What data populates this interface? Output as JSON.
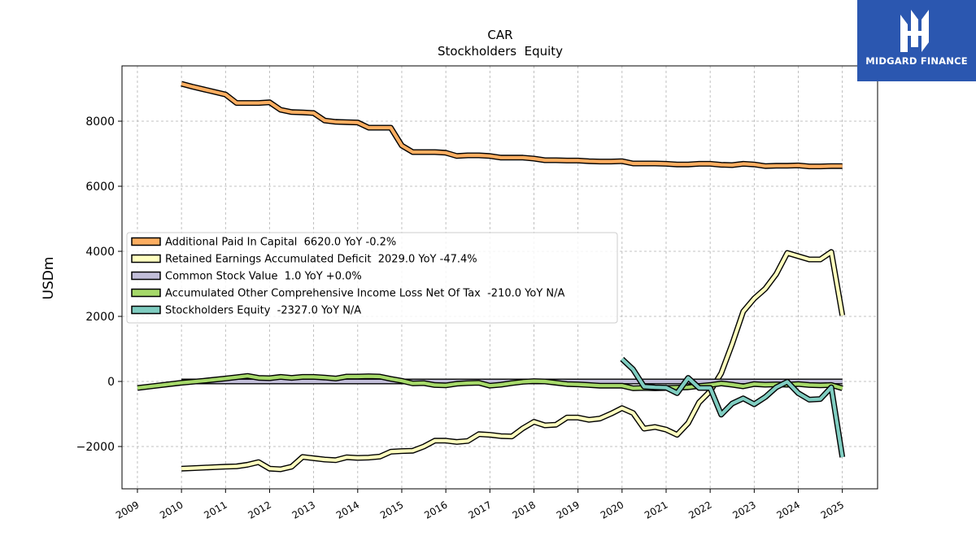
{
  "chart_data": {
    "type": "line",
    "title": "CAR",
    "subtitle": "Stockholders  Equity",
    "ylabel": "USDm",
    "xlabel": "",
    "xlim": [
      2008.65,
      2025.8
    ],
    "ylim": [
      -3300,
      9700
    ],
    "yticks": [
      -2000,
      0,
      2000,
      4000,
      6000,
      8000
    ],
    "ytick_labels": [
      "−2000",
      "0",
      "2000",
      "4000",
      "6000",
      "8000"
    ],
    "xticks": [
      2009,
      2010,
      2011,
      2012,
      2013,
      2014,
      2015,
      2016,
      2017,
      2018,
      2019,
      2020,
      2021,
      2022,
      2023,
      2024,
      2025
    ],
    "xtick_labels": [
      "2009",
      "2010",
      "2011",
      "2012",
      "2013",
      "2014",
      "2015",
      "2016",
      "2017",
      "2018",
      "2019",
      "2020",
      "2021",
      "2022",
      "2023",
      "2024",
      "2025"
    ],
    "grid": true,
    "legend_position": "center-left",
    "series": [
      {
        "name": "Additional Paid In Capital  6620.0 YoY -0.2%",
        "color": "#fdae61",
        "points": [
          [
            2010.0,
            9150
          ],
          [
            2010.25,
            9060
          ],
          [
            2010.5,
            8980
          ],
          [
            2010.75,
            8900
          ],
          [
            2011.0,
            8820
          ],
          [
            2011.25,
            8560
          ],
          [
            2011.5,
            8560
          ],
          [
            2011.75,
            8560
          ],
          [
            2012.0,
            8580
          ],
          [
            2012.25,
            8350
          ],
          [
            2012.5,
            8280
          ],
          [
            2012.75,
            8270
          ],
          [
            2013.0,
            8250
          ],
          [
            2013.25,
            8020
          ],
          [
            2013.5,
            7980
          ],
          [
            2013.75,
            7970
          ],
          [
            2014.0,
            7960
          ],
          [
            2014.25,
            7800
          ],
          [
            2014.5,
            7800
          ],
          [
            2014.75,
            7800
          ],
          [
            2015.0,
            7250
          ],
          [
            2015.25,
            7050
          ],
          [
            2015.5,
            7050
          ],
          [
            2015.75,
            7050
          ],
          [
            2016.0,
            7030
          ],
          [
            2016.25,
            6930
          ],
          [
            2016.5,
            6950
          ],
          [
            2016.75,
            6950
          ],
          [
            2017.0,
            6930
          ],
          [
            2017.25,
            6880
          ],
          [
            2017.5,
            6880
          ],
          [
            2017.75,
            6880
          ],
          [
            2018.0,
            6850
          ],
          [
            2018.25,
            6800
          ],
          [
            2018.5,
            6800
          ],
          [
            2018.75,
            6790
          ],
          [
            2019.0,
            6790
          ],
          [
            2019.25,
            6770
          ],
          [
            2019.5,
            6760
          ],
          [
            2019.75,
            6760
          ],
          [
            2020.0,
            6770
          ],
          [
            2020.25,
            6700
          ],
          [
            2020.5,
            6700
          ],
          [
            2020.75,
            6700
          ],
          [
            2021.0,
            6690
          ],
          [
            2021.25,
            6670
          ],
          [
            2021.5,
            6670
          ],
          [
            2021.75,
            6690
          ],
          [
            2022.0,
            6690
          ],
          [
            2022.25,
            6660
          ],
          [
            2022.5,
            6650
          ],
          [
            2022.75,
            6690
          ],
          [
            2023.0,
            6670
          ],
          [
            2023.25,
            6620
          ],
          [
            2023.5,
            6630
          ],
          [
            2023.75,
            6630
          ],
          [
            2024.0,
            6640
          ],
          [
            2024.25,
            6610
          ],
          [
            2024.5,
            6610
          ],
          [
            2024.75,
            6620
          ],
          [
            2025.0,
            6620
          ]
        ]
      },
      {
        "name": "Retained Earnings Accumulated Deficit  2029.0 YoY -47.4%",
        "color": "#ffffbf",
        "points": [
          [
            2010.0,
            -2680
          ],
          [
            2010.25,
            -2665
          ],
          [
            2010.5,
            -2650
          ],
          [
            2010.75,
            -2635
          ],
          [
            2011.0,
            -2620
          ],
          [
            2011.25,
            -2610
          ],
          [
            2011.5,
            -2560
          ],
          [
            2011.75,
            -2480
          ],
          [
            2012.0,
            -2680
          ],
          [
            2012.25,
            -2700
          ],
          [
            2012.5,
            -2620
          ],
          [
            2012.75,
            -2320
          ],
          [
            2013.0,
            -2360
          ],
          [
            2013.25,
            -2400
          ],
          [
            2013.5,
            -2420
          ],
          [
            2013.75,
            -2330
          ],
          [
            2014.0,
            -2350
          ],
          [
            2014.25,
            -2340
          ],
          [
            2014.5,
            -2310
          ],
          [
            2014.75,
            -2160
          ],
          [
            2015.0,
            -2140
          ],
          [
            2015.25,
            -2130
          ],
          [
            2015.5,
            -2000
          ],
          [
            2015.75,
            -1820
          ],
          [
            2016.0,
            -1820
          ],
          [
            2016.25,
            -1860
          ],
          [
            2016.5,
            -1830
          ],
          [
            2016.75,
            -1620
          ],
          [
            2017.0,
            -1640
          ],
          [
            2017.25,
            -1680
          ],
          [
            2017.5,
            -1690
          ],
          [
            2017.75,
            -1440
          ],
          [
            2018.0,
            -1240
          ],
          [
            2018.25,
            -1350
          ],
          [
            2018.5,
            -1330
          ],
          [
            2018.75,
            -1110
          ],
          [
            2019.0,
            -1110
          ],
          [
            2019.25,
            -1180
          ],
          [
            2019.5,
            -1140
          ],
          [
            2019.75,
            -990
          ],
          [
            2020.0,
            -820
          ],
          [
            2020.25,
            -970
          ],
          [
            2020.5,
            -1450
          ],
          [
            2020.75,
            -1400
          ],
          [
            2021.0,
            -1480
          ],
          [
            2021.25,
            -1640
          ],
          [
            2021.5,
            -1280
          ],
          [
            2021.75,
            -640
          ],
          [
            2022.0,
            -300
          ],
          [
            2022.25,
            250
          ],
          [
            2022.5,
            1150
          ],
          [
            2022.75,
            2150
          ],
          [
            2023.0,
            2550
          ],
          [
            2023.25,
            2850
          ],
          [
            2023.5,
            3300
          ],
          [
            2023.75,
            3950
          ],
          [
            2024.0,
            3850
          ],
          [
            2024.25,
            3750
          ],
          [
            2024.5,
            3750
          ],
          [
            2024.75,
            3980
          ],
          [
            2025.0,
            2029
          ]
        ]
      },
      {
        "name": "Common Stock Value  1.0 YoY +0.0%",
        "color": "#c2bed9",
        "points": [
          [
            2010.0,
            1
          ],
          [
            2025.0,
            1
          ]
        ]
      },
      {
        "name": "Accumulated Other Comprehensive Income Loss Net Of Tax  -210.0 YoY N/A",
        "color": "#a6d96a",
        "points": [
          [
            2009.0,
            -200
          ],
          [
            2009.5,
            -120
          ],
          [
            2010.0,
            -40
          ],
          [
            2010.5,
            20
          ],
          [
            2011.0,
            90
          ],
          [
            2011.25,
            130
          ],
          [
            2011.5,
            170
          ],
          [
            2011.75,
            110
          ],
          [
            2012.0,
            100
          ],
          [
            2012.25,
            140
          ],
          [
            2012.5,
            110
          ],
          [
            2012.75,
            140
          ],
          [
            2013.0,
            140
          ],
          [
            2013.25,
            120
          ],
          [
            2013.5,
            90
          ],
          [
            2013.75,
            150
          ],
          [
            2014.0,
            150
          ],
          [
            2014.25,
            160
          ],
          [
            2014.5,
            150
          ],
          [
            2014.75,
            80
          ],
          [
            2015.0,
            20
          ],
          [
            2015.25,
            -60
          ],
          [
            2015.5,
            -50
          ],
          [
            2015.75,
            -110
          ],
          [
            2016.0,
            -120
          ],
          [
            2016.25,
            -70
          ],
          [
            2016.5,
            -50
          ],
          [
            2016.75,
            -40
          ],
          [
            2017.0,
            -130
          ],
          [
            2017.25,
            -100
          ],
          [
            2017.5,
            -50
          ],
          [
            2017.75,
            -10
          ],
          [
            2018.0,
            10
          ],
          [
            2018.25,
            0
          ],
          [
            2018.5,
            -40
          ],
          [
            2018.75,
            -80
          ],
          [
            2019.0,
            -90
          ],
          [
            2019.25,
            -110
          ],
          [
            2019.5,
            -130
          ],
          [
            2019.75,
            -130
          ],
          [
            2020.0,
            -130
          ],
          [
            2020.25,
            -210
          ],
          [
            2020.5,
            -200
          ],
          [
            2020.75,
            -210
          ],
          [
            2021.0,
            -200
          ],
          [
            2021.25,
            -190
          ],
          [
            2021.5,
            -180
          ],
          [
            2021.75,
            -140
          ],
          [
            2022.0,
            -110
          ],
          [
            2022.25,
            -60
          ],
          [
            2022.5,
            -100
          ],
          [
            2022.75,
            -150
          ],
          [
            2023.0,
            -80
          ],
          [
            2023.25,
            -100
          ],
          [
            2023.5,
            -90
          ],
          [
            2023.75,
            -100
          ],
          [
            2024.0,
            -80
          ],
          [
            2024.25,
            -110
          ],
          [
            2024.5,
            -120
          ],
          [
            2024.75,
            -110
          ],
          [
            2025.0,
            -210
          ]
        ]
      },
      {
        "name": "Stockholders Equity  -2327.0 YoY N/A",
        "color": "#80cdc1",
        "points": [
          [
            2020.0,
            690
          ],
          [
            2020.25,
            370
          ],
          [
            2020.5,
            -160
          ],
          [
            2020.75,
            -180
          ],
          [
            2021.0,
            -190
          ],
          [
            2021.25,
            -360
          ],
          [
            2021.5,
            110
          ],
          [
            2021.75,
            -200
          ],
          [
            2022.0,
            -200
          ],
          [
            2022.25,
            -1020
          ],
          [
            2022.5,
            -680
          ],
          [
            2022.75,
            -520
          ],
          [
            2023.0,
            -700
          ],
          [
            2023.25,
            -480
          ],
          [
            2023.5,
            -180
          ],
          [
            2023.75,
            -10
          ],
          [
            2024.0,
            -360
          ],
          [
            2024.25,
            -560
          ],
          [
            2024.5,
            -540
          ],
          [
            2024.75,
            -180
          ],
          [
            2025.0,
            -2327
          ]
        ]
      }
    ]
  },
  "logo": {
    "name": "MIDGARD FINANCE",
    "bg_color": "#2b57b0"
  }
}
